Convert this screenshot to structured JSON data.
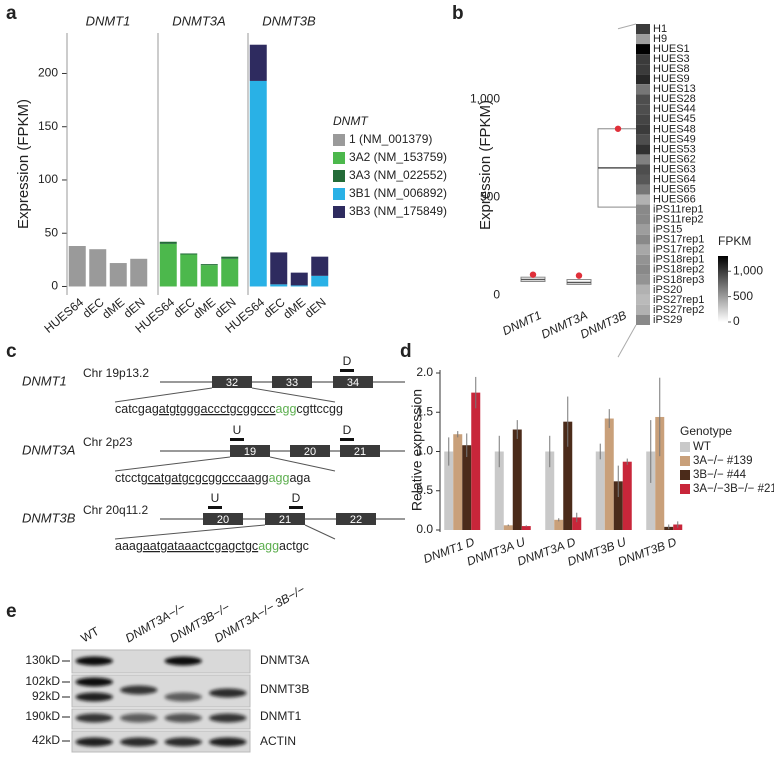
{
  "panel_labels": [
    "a",
    "b",
    "c",
    "d",
    "e"
  ],
  "chart_data": [
    {
      "type": "stacked_bar_facets",
      "ylabel": "Expression (FPKM)",
      "ylim": [
        -8,
        238
      ],
      "yticks": [
        0,
        50,
        100,
        150,
        200
      ],
      "legend_title": "DNMT",
      "facets": [
        {
          "title": "DNMT1",
          "categories": [
            "HUES64",
            "dEC",
            "dME",
            "dEN"
          ],
          "series": [
            {
              "name": "1 (NM_001379)",
              "color": "#9a9a9a",
              "values": [
                38,
                35,
                22,
                26
              ]
            }
          ]
        },
        {
          "title": "DNMT3A",
          "categories": [
            "HUES64",
            "dEC",
            "dME",
            "dEN"
          ],
          "series": [
            {
              "name": "3A2 (NM_153759)",
              "color": "#4cb84c",
              "values": [
                40,
                30,
                20,
                26
              ]
            },
            {
              "name": "3A3 (NM_022552)",
              "color": "#236b38",
              "values": [
                2,
                1,
                1,
                2
              ]
            }
          ]
        },
        {
          "title": "DNMT3B",
          "categories": [
            "HUES64",
            "dEC",
            "dME",
            "dEN"
          ],
          "series": [
            {
              "name": "3B1 (NM_006892)",
              "color": "#29b1e6",
              "values": [
                193,
                2,
                1,
                10
              ]
            },
            {
              "name": "3B3 (NM_175849)",
              "color": "#2e2b5f",
              "values": [
                34,
                30,
                12,
                18
              ]
            }
          ]
        }
      ]
    },
    {
      "type": "boxplot",
      "ylabel": "Expression (FPKM)",
      "ylim": [
        -50,
        1380
      ],
      "yticks": [
        0,
        500,
        {
          "value": 1000,
          "label": "1,000"
        }
      ],
      "categories": [
        "DNMT1",
        "DNMT3A",
        "DNMT3B"
      ],
      "boxes": [
        {
          "q1": 70,
          "median": 80,
          "q3": 92
        },
        {
          "q1": 55,
          "median": 65,
          "q3": 80
        },
        {
          "q1": 450,
          "median": 650,
          "q3": 850
        }
      ],
      "highlight": {
        "row": "HUES64",
        "color": "#e0303a",
        "values": [
          105,
          100,
          850
        ]
      },
      "heatmap": {
        "rows": [
          "H1",
          "H9",
          "HUES1",
          "HUES3",
          "HUES8",
          "HUES9",
          "HUES13",
          "HUES28",
          "HUES44",
          "HUES45",
          "HUES48",
          "HUES49",
          "HUES53",
          "HUES62",
          "HUES63",
          "HUES64",
          "HUES65",
          "HUES66",
          "iPS11rep1",
          "iPS11rep2",
          "iPS15",
          "iPS17rep1",
          "iPS17rep2",
          "iPS18rep1",
          "iPS18rep2",
          "iPS18rep3",
          "iPS20",
          "iPS27rep1",
          "iPS27rep2",
          "iPS29"
        ],
        "values": [
          1000,
          500,
          1300,
          1000,
          1000,
          1100,
          700,
          900,
          900,
          950,
          1000,
          900,
          1050,
          650,
          900,
          850,
          700,
          400,
          600,
          600,
          500,
          600,
          450,
          550,
          600,
          550,
          400,
          350,
          400,
          600
        ],
        "colorbar_label": "FPKM",
        "clim": [
          0,
          1300
        ],
        "cticks": [
          0,
          500,
          {
            "value": 1000,
            "label": "1,000"
          }
        ]
      }
    },
    {
      "type": "grouped_bar_error",
      "ylabel": "Relative expression",
      "ylim": [
        0,
        2.0
      ],
      "yticks": [
        {
          "value": 0,
          "label": "0.0"
        },
        0.5,
        {
          "value": 1,
          "label": "1.0"
        },
        1.5,
        {
          "value": 2,
          "label": "2.0"
        }
      ],
      "legend_title": "Genotype",
      "categories": [
        "DNMT1 D",
        "DNMT3A U",
        "DNMT3A D",
        "DNMT3B U",
        "DNMT3B D"
      ],
      "series": [
        {
          "name": "WT",
          "color": "#c9c9c9",
          "values": [
            1,
            1,
            1,
            1,
            1
          ],
          "errors": [
            0.18,
            0.2,
            0.2,
            0.1,
            0.4
          ]
        },
        {
          "name": "3A−/− #139",
          "color": "#c9a07a",
          "values": [
            1.22,
            0.06,
            0.13,
            1.42,
            1.44
          ],
          "errors": [
            0.04,
            0.01,
            0.02,
            0.12,
            0.5
          ]
        },
        {
          "name": "3B−/− #44",
          "color": "#4b2b1a",
          "values": [
            1.08,
            1.28,
            1.38,
            0.62,
            0.04
          ],
          "errors": [
            0.15,
            0.12,
            0.32,
            0.2,
            0.03
          ]
        },
        {
          "name": "3A−/−3B−/− #21",
          "color": "#c8263a",
          "values": [
            1.75,
            0.05,
            0.16,
            0.87,
            0.07
          ],
          "errors": [
            0.2,
            0.01,
            0.06,
            0.04,
            0.04
          ]
        }
      ]
    }
  ],
  "gene_diagrams": [
    {
      "gene": "DNMT1",
      "locus": "Chr 19p13.2",
      "exons": [
        "32",
        "33",
        "34"
      ],
      "primers": [
        "D"
      ],
      "sequence_parts": [
        "catcga",
        "gatgtgggaccctgcggccc",
        "agg",
        "cgttccgg"
      ]
    },
    {
      "gene": "DNMT3A",
      "locus": "Chr 2p23",
      "exons": [
        "19",
        "20",
        "21"
      ],
      "primers": [
        "U",
        "D"
      ],
      "sequence_parts": [
        "ctcct",
        "gcatgatgcgcggcccaagg",
        "agg",
        "aga"
      ]
    },
    {
      "gene": "DNMT3B",
      "locus": "Chr 20q11.2",
      "exons": [
        "20",
        "21",
        "22"
      ],
      "primers": [
        "U",
        "D"
      ],
      "sequence_parts": [
        "aaag",
        "aatgataaactcgagctgc",
        "agg",
        "actgc"
      ]
    }
  ],
  "western_blot": {
    "lanes": [
      "WT",
      "DNMT3A−/−",
      "DNMT3B−/−",
      "DNMT3A−/− 3B−/−"
    ],
    "rows": [
      {
        "markers": [
          "130kD"
        ],
        "protein": "DNMT3A"
      },
      {
        "markers": [
          "102kD",
          "92kD"
        ],
        "protein": "DNMT3B"
      },
      {
        "markers": [
          "190kD"
        ],
        "protein": "DNMT1"
      },
      {
        "markers": [
          "42kD"
        ],
        "protein": "ACTIN"
      }
    ]
  }
}
